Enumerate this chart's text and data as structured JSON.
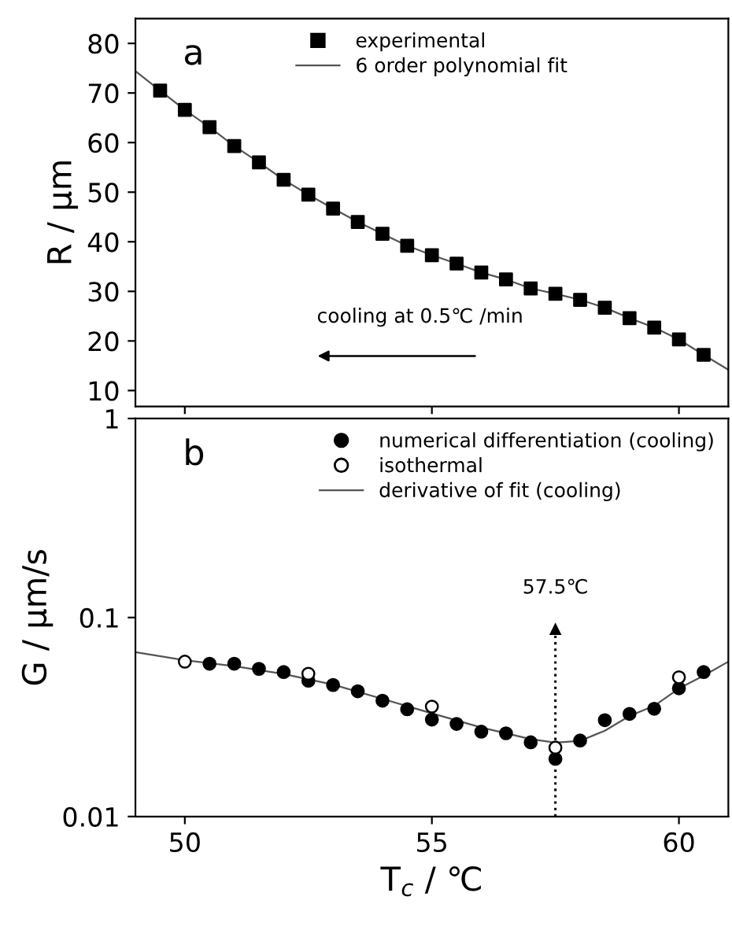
{
  "chart_data": [
    {
      "type": "scatter",
      "ylabel": "R / μm",
      "xlim": [
        49,
        61
      ],
      "ylim": [
        6.8,
        85
      ],
      "yticks": [
        10,
        20,
        30,
        40,
        50,
        60,
        70,
        80
      ],
      "xticks": [
        50,
        55,
        60
      ],
      "tick_labels": "y",
      "legend": "top",
      "grid": false,
      "annotations": [
        "a",
        "cooling at 0.5℃ /min"
      ],
      "series": [
        {
          "name": "experimental",
          "marker": "square",
          "color": "#000000",
          "x": [
            49.5,
            50,
            50.5,
            51,
            51.5,
            52,
            52.5,
            53,
            53.5,
            54,
            54.5,
            55,
            55.5,
            56,
            56.5,
            57,
            57.5,
            58,
            58.5,
            59,
            59.5,
            60,
            60.5
          ],
          "values": [
            70.5,
            66.6,
            63.1,
            59.3,
            56.0,
            52.5,
            49.5,
            46.7,
            44.0,
            41.6,
            39.2,
            37.3,
            35.6,
            33.8,
            32.4,
            30.6,
            29.5,
            28.3,
            26.7,
            24.6,
            22.7,
            20.3,
            17.2
          ]
        },
        {
          "name": "6 order polynomial fit",
          "type": "line",
          "line_style": "solid",
          "color": "#555555",
          "x": [
            49,
            49.5,
            50,
            50.5,
            51,
            51.5,
            52,
            52.5,
            53,
            53.5,
            54,
            54.5,
            55,
            55.5,
            56,
            56.5,
            57,
            57.5,
            58,
            58.5,
            59,
            59.5,
            60,
            60.5,
            61
          ],
          "values": [
            74.4,
            70.5,
            66.6,
            63.1,
            59.3,
            56.0,
            52.5,
            49.5,
            46.7,
            44.0,
            41.6,
            39.2,
            37.3,
            35.6,
            33.8,
            32.4,
            30.6,
            29.5,
            28.3,
            26.7,
            24.6,
            22.7,
            20.3,
            17.2,
            14.2
          ]
        }
      ]
    },
    {
      "type": "scatter",
      "ylabel": "G / μm/s",
      "xlabel": "T$_{c}$ / ℃",
      "log": "y",
      "xlim": [
        49,
        61
      ],
      "ylim": [
        0.01,
        1
      ],
      "yticks": [
        0.01,
        0.1,
        1
      ],
      "xticks": [
        50,
        55,
        60
      ],
      "legend": "top right",
      "grid": false,
      "annotations": [
        "b"
      ],
      "ref_lines": [
        {
          "axis": "x",
          "value": 57.5,
          "label": "57.5℃",
          "line_style": "dotted",
          "color": "#000000"
        }
      ],
      "series": [
        {
          "name": "numerical differentiation (cooling)",
          "marker": "circle",
          "color": "#000000",
          "x": [
            50.5,
            51,
            51.5,
            52,
            52.5,
            53,
            53.5,
            54,
            54.5,
            55,
            55.5,
            56,
            56.5,
            57,
            57.5,
            58,
            58.5,
            59,
            59.5,
            60,
            60.5
          ],
          "values": [
            0.0586,
            0.0586,
            0.0552,
            0.0532,
            0.0481,
            0.0458,
            0.0426,
            0.0382,
            0.0346,
            0.0307,
            0.0292,
            0.0267,
            0.0262,
            0.0236,
            0.0195,
            0.0241,
            0.0305,
            0.0328,
            0.0348,
            0.0441,
            0.0532
          ]
        },
        {
          "name": "isothermal",
          "marker": "circle",
          "color": "#ffffff",
          "x": [
            50,
            52.5,
            55,
            57.5,
            60
          ],
          "values": [
            0.06,
            0.0522,
            0.0357,
            0.0222,
            0.0501
          ]
        },
        {
          "name": "derivative of fit (cooling)",
          "type": "line",
          "line_style": "solid",
          "color": "#555555",
          "x": [
            49,
            50,
            51,
            52,
            53,
            54,
            55,
            56,
            57,
            57.5,
            58,
            58.5,
            59,
            59.5,
            60,
            60.5,
            61
          ],
          "values": [
            0.067,
            0.061,
            0.057,
            0.052,
            0.046,
            0.039,
            0.033,
            0.028,
            0.0245,
            0.0235,
            0.024,
            0.027,
            0.032,
            0.036,
            0.044,
            0.051,
            0.06
          ]
        }
      ]
    }
  ]
}
